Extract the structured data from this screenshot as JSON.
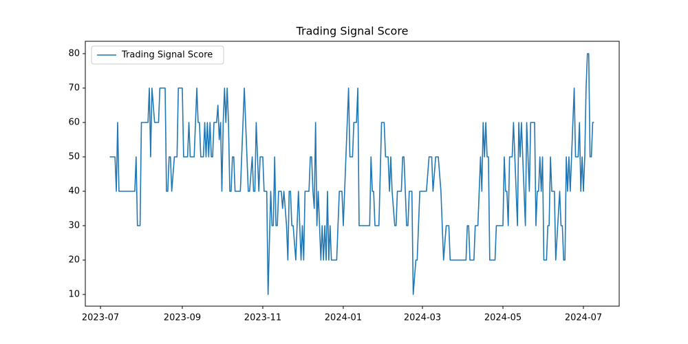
{
  "chart_data": {
    "type": "line",
    "title": "Trading Signal Score",
    "x": [
      19546,
      19550,
      19551,
      19552,
      19553,
      19565,
      19566,
      19567,
      19569,
      19570,
      19575,
      19576,
      19577,
      19578,
      19580,
      19583,
      19584,
      19588,
      19589,
      19590,
      19591,
      19592,
      19593,
      19595,
      19597,
      19598,
      19601,
      19602,
      19605,
      19606,
      19607,
      19610,
      19612,
      19613,
      19614,
      19615,
      19617,
      19618,
      19619,
      19620,
      19621,
      19622,
      19623,
      19624,
      19625,
      19627,
      19628,
      19629,
      19630,
      19631,
      19632,
      19633,
      19634,
      19635,
      19636,
      19637,
      19638,
      19639,
      19640,
      19641,
      19645,
      19648,
      19649,
      19651,
      19652,
      19654,
      19655,
      19656,
      19657,
      19658,
      19659,
      19660,
      19662,
      19663,
      19665,
      19666,
      19668,
      19669,
      19670,
      19671,
      19672,
      19673,
      19674,
      19676,
      19677,
      19678,
      19680,
      19681,
      19682,
      19683,
      19684,
      19685,
      19687,
      19688,
      19689,
      19690,
      19691,
      19692,
      19693,
      19694,
      19697,
      19698,
      19699,
      19700,
      19701,
      19702,
      19703,
      19704,
      19705,
      19706,
      19707,
      19708,
      19709,
      19710,
      19711,
      19712,
      19713,
      19714,
      19718,
      19719,
      19720,
      19722,
      19723,
      19725,
      19727,
      19728,
      19730,
      19731,
      19733,
      19734,
      19735,
      19743,
      19744,
      19745,
      19746,
      19747,
      19750,
      19752,
      19754,
      19755,
      19757,
      19758,
      19759,
      19760,
      19762,
      19763,
      19764,
      19767,
      19768,
      19769,
      19770,
      19771,
      19772,
      19773,
      19775,
      19776,
      19778,
      19779,
      19781,
      19786,
      19788,
      19790,
      19791,
      19793,
      19795,
      19797,
      19798,
      19799,
      19801,
      19803,
      19804,
      19816,
      19817,
      19818,
      19819,
      19822,
      19823,
      19825,
      19827,
      19828,
      19829,
      19830,
      19831,
      19832,
      19833,
      19834,
      19838,
      19839,
      19844,
      19845,
      19846,
      19847,
      19848,
      19849,
      19851,
      19852,
      19853,
      19854,
      19855,
      19856,
      19857,
      19858,
      19859,
      19861,
      19862,
      19864,
      19865,
      19868,
      19869,
      19870,
      19871,
      19872,
      19873,
      19874,
      19875,
      19877,
      19878,
      19879,
      19880,
      19881,
      19883,
      19884,
      19887,
      19888,
      19889,
      19890,
      19891,
      19892,
      19893,
      19894,
      19895,
      19896,
      19898,
      19899,
      19901,
      19902,
      19903,
      19904,
      19905,
      19906,
      19907,
      19908,
      19909,
      19910,
      19911,
      19912,
      19913
    ],
    "series": [
      {
        "name": "Trading Signal Score",
        "color": "#1f77b4",
        "values": [
          50,
          50,
          40,
          60,
          40,
          40,
          50,
          30,
          30,
          60,
          60,
          70,
          50,
          70,
          60,
          60,
          70,
          70,
          40,
          40,
          50,
          50,
          40,
          50,
          50,
          70,
          70,
          50,
          50,
          60,
          50,
          50,
          70,
          60,
          60,
          50,
          50,
          60,
          50,
          60,
          50,
          60,
          50,
          50,
          60,
          60,
          65,
          55,
          60,
          40,
          60,
          70,
          60,
          70,
          60,
          40,
          40,
          50,
          50,
          40,
          40,
          70,
          60,
          40,
          40,
          50,
          40,
          40,
          60,
          50,
          40,
          50,
          50,
          40,
          40,
          10,
          40,
          30,
          30,
          50,
          30,
          30,
          40,
          40,
          35,
          40,
          30,
          20,
          40,
          40,
          30,
          30,
          20,
          30,
          40,
          30,
          20,
          30,
          20,
          40,
          40,
          50,
          50,
          40,
          35,
          60,
          30,
          40,
          30,
          20,
          30,
          20,
          30,
          20,
          40,
          20,
          30,
          20,
          20,
          30,
          40,
          40,
          30,
          50,
          70,
          50,
          50,
          60,
          60,
          70,
          30,
          30,
          50,
          40,
          40,
          30,
          30,
          60,
          60,
          50,
          50,
          40,
          50,
          40,
          30,
          30,
          40,
          40,
          50,
          50,
          40,
          30,
          30,
          40,
          40,
          10,
          20,
          20,
          40,
          40,
          50,
          50,
          40,
          50,
          50,
          40,
          30,
          20,
          30,
          30,
          20,
          20,
          30,
          30,
          20,
          20,
          30,
          30,
          50,
          40,
          60,
          50,
          60,
          50,
          50,
          20,
          20,
          30,
          30,
          50,
          40,
          40,
          30,
          50,
          50,
          60,
          50,
          40,
          30,
          60,
          50,
          60,
          50,
          30,
          60,
          40,
          60,
          60,
          30,
          40,
          40,
          50,
          40,
          50,
          20,
          20,
          30,
          30,
          50,
          40,
          40,
          20,
          40,
          30,
          30,
          20,
          20,
          50,
          40,
          50,
          40,
          50,
          70,
          50,
          50,
          60,
          40,
          50,
          40,
          50,
          70,
          80,
          80,
          50,
          50,
          60,
          60
        ]
      }
    ],
    "xlim": [
      19527.5,
      19932.1
    ],
    "xticks": [
      {
        "value": 19539,
        "label": "2023-07"
      },
      {
        "value": 19601,
        "label": "2023-09"
      },
      {
        "value": 19662,
        "label": "2023-11"
      },
      {
        "value": 19723,
        "label": "2024-01"
      },
      {
        "value": 19783,
        "label": "2024-03"
      },
      {
        "value": 19844,
        "label": "2024-05"
      },
      {
        "value": 19905,
        "label": "2024-07"
      }
    ],
    "ylim": [
      6.6,
      83.6
    ],
    "yticks": [
      10,
      20,
      30,
      40,
      50,
      60,
      70,
      80
    ],
    "legend": "upper-left",
    "grid": false
  }
}
